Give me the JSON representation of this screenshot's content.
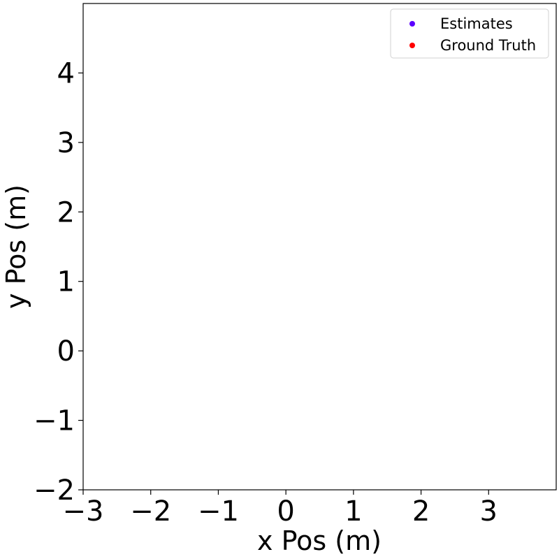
{
  "chart_data": {
    "type": "scatter",
    "title": "",
    "xlabel": "x Pos (m)",
    "ylabel": "y Pos (m)",
    "xlim": [
      -3,
      4
    ],
    "ylim": [
      -2,
      5
    ],
    "xticks": [
      -3,
      -2,
      -1,
      0,
      1,
      2,
      3
    ],
    "yticks": [
      -2,
      -1,
      0,
      1,
      2,
      3,
      4
    ],
    "xtick_labels": [
      "−3",
      "−2",
      "−1",
      "0",
      "1",
      "2",
      "3"
    ],
    "ytick_labels": [
      "−2",
      "−1",
      "0",
      "1",
      "2",
      "3",
      "4"
    ],
    "grid": false,
    "legend": {
      "placement": "top-right",
      "entries": [
        {
          "label": "Estimates",
          "color": "#5b00ff"
        },
        {
          "label": "Ground Truth",
          "color": "#ff0000"
        }
      ]
    },
    "series": [
      {
        "name": "Estimates",
        "color": "#5b00ff",
        "points": []
      },
      {
        "name": "Ground Truth",
        "color": "#ff0000",
        "points": []
      }
    ]
  }
}
